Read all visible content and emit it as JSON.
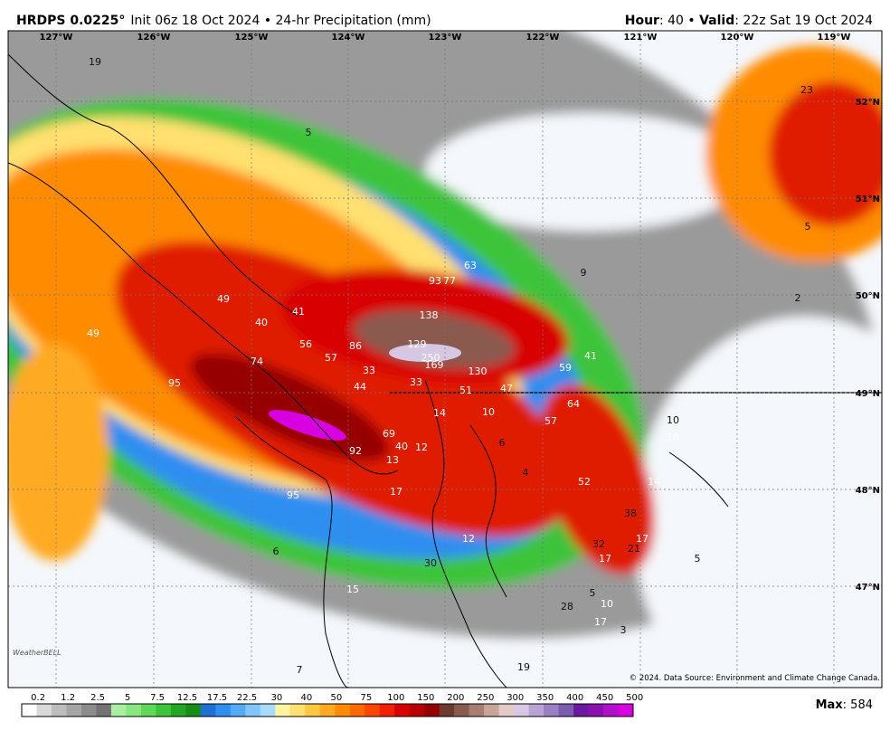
{
  "header": {
    "title": "HRDPS 0.0225°",
    "subtitle": "Init 06z 18 Oct 2024 • 24-hr Precipitation (mm)",
    "hour_label": "Hour",
    "hour_value": ": 40 • ",
    "valid_label": "Valid",
    "valid_value": ": 22z Sat 19 Oct 2024"
  },
  "longitude_labels": [
    "127°W",
    "126°W",
    "125°W",
    "124°W",
    "123°W",
    "122°W",
    "121°W",
    "120°W",
    "119°W"
  ],
  "latitude_labels": [
    "52°N",
    "51°N",
    "50°N",
    "49°N",
    "48°N",
    "47°N"
  ],
  "point_values": [
    19,
    5,
    23,
    5,
    2,
    9,
    63,
    93,
    77,
    49,
    41,
    40,
    138,
    49,
    56,
    86,
    129,
    250,
    169,
    57,
    74,
    33,
    130,
    59,
    41,
    95,
    44,
    33,
    51,
    47,
    64,
    14,
    10,
    57,
    10,
    69,
    16,
    6,
    40,
    12,
    92,
    13,
    4,
    52,
    14,
    17,
    95,
    38,
    12,
    32,
    17,
    21,
    6,
    17,
    5,
    30,
    5,
    10,
    28,
    17,
    3,
    7,
    19,
    15
  ],
  "colorbar": {
    "labels": [
      "0.2",
      "1.2",
      "2.5",
      "5",
      "7.5",
      "12.5",
      "17.5",
      "22.5",
      "30",
      "40",
      "50",
      "75",
      "100",
      "150",
      "200",
      "250",
      "300",
      "350",
      "400",
      "450",
      "500"
    ]
  },
  "max": {
    "label": "Max",
    "value": ": 584"
  },
  "credit": "© 2024. Data Source: Environment and Climate Change Canada.",
  "logo": "WeatherBELL"
}
